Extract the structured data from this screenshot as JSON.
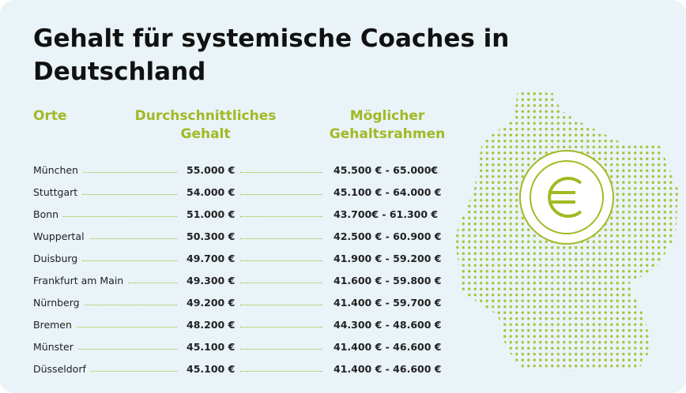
{
  "header": {
    "title": "Gehalt für systemische Coaches in Deutschland"
  },
  "table": {
    "columns": [
      "Orte",
      "Durchschnittliches Gehalt",
      "Möglicher Gehaltsrahmen"
    ],
    "rows": [
      [
        "München",
        "55.000 €",
        "45.500 € - 65.000€"
      ],
      [
        "Stuttgart",
        "54.000 €",
        "45.100 € - 64.000 €"
      ],
      [
        "Bonn",
        "51.000 €",
        "43.700€ - 61.300 €"
      ],
      [
        "Wuppertal",
        "50.300 €",
        "42.500 € - 60.900 €"
      ],
      [
        "Duisburg",
        "49.700 €",
        "41.900 € - 59.200 €"
      ],
      [
        "Frankfurt am Main",
        "49.300 €",
        "41.600 € - 59.800 €"
      ],
      [
        "Nürnberg",
        "49.200 €",
        "41.400 € - 59.700 €"
      ],
      [
        "Bremen",
        "48.200 €",
        "44.300 € - 48.600 €"
      ],
      [
        "Münster",
        "45.100 €",
        "41.400 € - 46.600 €"
      ],
      [
        "Düsseldorf",
        "45.100 €",
        "41.400 € - 46.600 €"
      ]
    ]
  }
}
